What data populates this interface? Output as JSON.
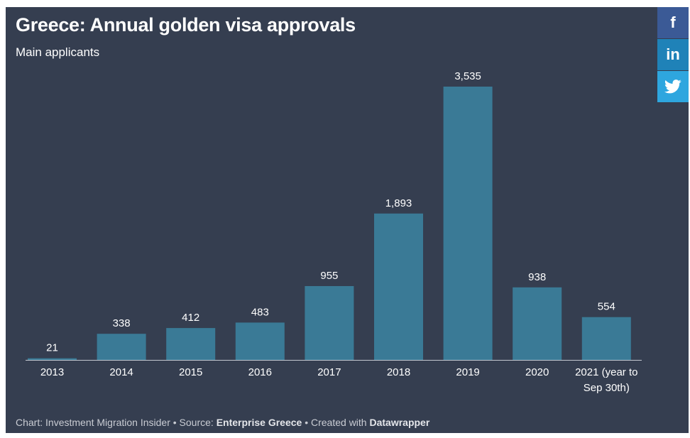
{
  "chart_data": {
    "type": "bar",
    "title": "Greece: Annual golden visa approvals",
    "subtitle": "Main applicants",
    "categories": [
      "2013",
      "2014",
      "2015",
      "2016",
      "2017",
      "2018",
      "2019",
      "2020",
      "2021 (year to Sep 30th)"
    ],
    "values": [
      21,
      338,
      412,
      483,
      955,
      1893,
      3535,
      938,
      554
    ],
    "value_labels": [
      "21",
      "338",
      "412",
      "483",
      "955",
      "1,893",
      "3,535",
      "938",
      "554"
    ],
    "xlabel": "",
    "ylabel": "",
    "ylim": [
      0,
      3535
    ],
    "grid": false,
    "legend": "none",
    "bar_color": "#3a7a96",
    "background": "#353e50"
  },
  "footer": {
    "prefix": "Chart: Investment Migration Insider • Source: ",
    "source": "Enterprise Greece",
    "middle": " • Created with ",
    "tool": "Datawrapper"
  },
  "share": {
    "facebook_icon": "facebook-icon",
    "facebook_glyph": "f",
    "linkedin_icon": "linkedin-icon",
    "linkedin_glyph": "in",
    "twitter_icon": "twitter-icon",
    "colors": {
      "facebook": "#3b5a96",
      "linkedin": "#1f82b8",
      "twitter": "#2ea6df"
    }
  }
}
